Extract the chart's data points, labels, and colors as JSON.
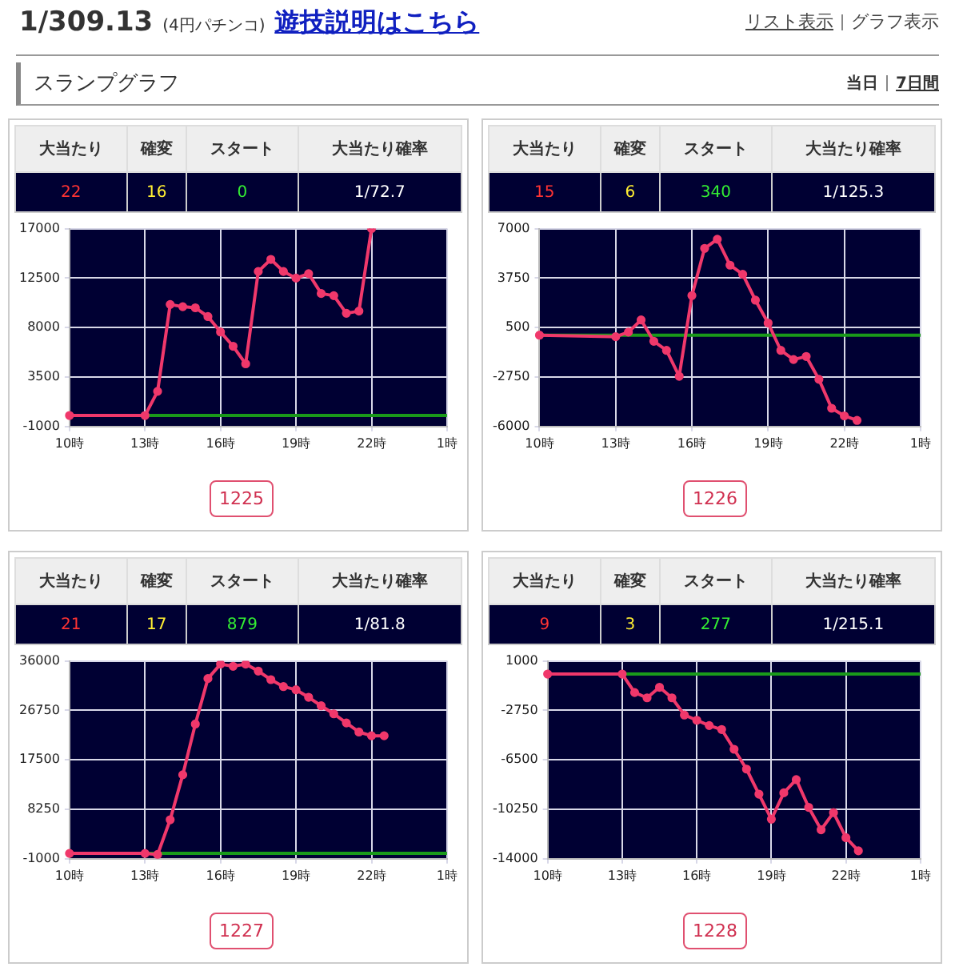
{
  "chart_data": [
    {
      "type": "other",
      "title": "1/309.13",
      "subtitle": "(4円パチンコ)",
      "annotations": [
        "遊技説明はこちら",
        "リスト表示",
        "グラフ表示",
        "スランプグラフ",
        "当日",
        "7日間"
      ]
    },
    {
      "type": "line",
      "title": "1225",
      "annotations": [
        "大当たり",
        "22",
        "確変",
        "16",
        "スタート",
        "0",
        "大当たり確率",
        "1/72.7"
      ],
      "grid": true,
      "legend": false,
      "marker": "circle",
      "categories": [
        "10時",
        null,
        null,
        null,
        null,
        null,
        "13時",
        null,
        null,
        null,
        null,
        null,
        "16時",
        null,
        null,
        null,
        null,
        null,
        "19時",
        null,
        null,
        null,
        null,
        null,
        "22時",
        null,
        null,
        null,
        null,
        null,
        "1時"
      ],
      "ylim": [
        -1000,
        17000
      ],
      "yticks": [
        -1000,
        3500,
        8000,
        12500,
        17000
      ],
      "ref_lines": [
        {
          "axis": "y",
          "value": 0,
          "color": "#1a9a1a"
        }
      ],
      "series": [
        {
          "color": "#f0386b",
          "values": [
            0,
            null,
            null,
            null,
            null,
            null,
            0,
            2200,
            10100,
            9900,
            9800,
            9000,
            7600,
            6300,
            4700,
            13100,
            14200,
            13100,
            12500,
            12900,
            11100,
            10900,
            9300,
            9500,
            17000,
            null,
            null,
            null,
            null,
            null,
            null
          ]
        }
      ]
    },
    {
      "type": "line",
      "title": "1226",
      "annotations": [
        "大当たり",
        "15",
        "確変",
        "6",
        "スタート",
        "340",
        "大当たり確率",
        "1/125.3"
      ],
      "grid": true,
      "legend": false,
      "marker": "circle",
      "categories": [
        "10時",
        null,
        null,
        null,
        null,
        null,
        "13時",
        null,
        null,
        null,
        null,
        null,
        "16時",
        null,
        null,
        null,
        null,
        null,
        "19時",
        null,
        null,
        null,
        null,
        null,
        "22時",
        null,
        null,
        null,
        null,
        null,
        "1時"
      ],
      "ylim": [
        -6000,
        7000
      ],
      "yticks": [
        -6000,
        -2750,
        500,
        3750,
        7000
      ],
      "ref_lines": [
        {
          "axis": "y",
          "value": 0,
          "color": "#1a9a1a"
        }
      ],
      "series": [
        {
          "color": "#f0386b",
          "values": [
            0,
            null,
            null,
            null,
            null,
            null,
            -100,
            200,
            1000,
            -400,
            -1000,
            -2700,
            2600,
            5700,
            6300,
            4600,
            4000,
            2300,
            800,
            -1000,
            -1600,
            -1400,
            -2900,
            -4800,
            -5300,
            -5600,
            null,
            null,
            null,
            null,
            null
          ]
        }
      ]
    },
    {
      "type": "line",
      "title": "1227",
      "annotations": [
        "大当たり",
        "21",
        "確変",
        "17",
        "スタート",
        "879",
        "大当たり確率",
        "1/81.8"
      ],
      "grid": true,
      "legend": false,
      "marker": "circle",
      "categories": [
        "10時",
        null,
        null,
        null,
        null,
        null,
        "13時",
        null,
        null,
        null,
        null,
        null,
        "16時",
        null,
        null,
        null,
        null,
        null,
        "19時",
        null,
        null,
        null,
        null,
        null,
        "22時",
        null,
        null,
        null,
        null,
        null,
        "1時"
      ],
      "ylim": [
        -1000,
        36000
      ],
      "yticks": [
        -1000,
        8250,
        17500,
        26750,
        36000
      ],
      "ref_lines": [
        {
          "axis": "y",
          "value": 0,
          "color": "#1a9a1a"
        }
      ],
      "series": [
        {
          "color": "#f0386b",
          "values": [
            0,
            null,
            null,
            null,
            null,
            null,
            0,
            -200,
            6300,
            14700,
            24200,
            32700,
            35400,
            35000,
            35400,
            34100,
            32500,
            31200,
            30600,
            29200,
            27600,
            26100,
            24400,
            22700,
            22000,
            22000,
            null,
            null,
            null,
            null,
            null
          ]
        }
      ]
    },
    {
      "type": "line",
      "title": "1228",
      "annotations": [
        "大当たり",
        "9",
        "確変",
        "3",
        "スタート",
        "277",
        "大当たり確率",
        "1/215.1"
      ],
      "grid": true,
      "legend": false,
      "marker": "circle",
      "categories": [
        "10時",
        null,
        null,
        null,
        null,
        null,
        "13時",
        null,
        null,
        null,
        null,
        null,
        "16時",
        null,
        null,
        null,
        null,
        null,
        "19時",
        null,
        null,
        null,
        null,
        null,
        "22時",
        null,
        null,
        null,
        null,
        null,
        "1時"
      ],
      "ylim": [
        -14000,
        1000
      ],
      "yticks": [
        -14000,
        -10250,
        -6500,
        -2750,
        1000
      ],
      "ref_lines": [
        {
          "axis": "y",
          "value": 0,
          "color": "#1a9a1a"
        }
      ],
      "series": [
        {
          "color": "#f0386b",
          "values": [
            0,
            null,
            null,
            null,
            null,
            null,
            0,
            -1400,
            -1800,
            -1000,
            -1800,
            -3100,
            -3500,
            -3900,
            -4200,
            -5700,
            -7200,
            -9100,
            -11000,
            -9000,
            -8000,
            -10100,
            -11800,
            -10500,
            -12400,
            -13400,
            null,
            null,
            null,
            null,
            null
          ]
        }
      ]
    }
  ]
}
